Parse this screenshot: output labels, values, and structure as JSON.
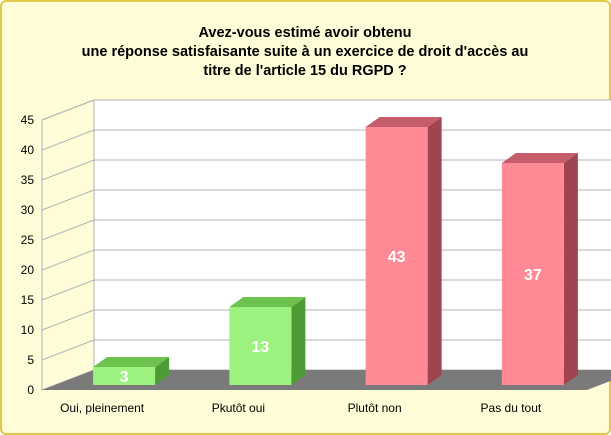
{
  "chart_data": {
    "type": "bar",
    "title_lines": [
      "Avez-vous estimé avoir obtenu",
      "une réponse satisfaisante suite à un exercice de droit d'accès au",
      "titre de l'article 15 du RGPD ?"
    ],
    "categories": [
      "Oui, pleinement",
      "Pkutôt oui",
      "Plutôt non",
      "Pas du tout"
    ],
    "values": [
      3,
      13,
      43,
      37
    ],
    "data_labels": [
      "3",
      "13",
      "43",
      "37"
    ],
    "ylim": [
      0,
      45
    ],
    "yticks": [
      "0",
      "5",
      "10",
      "15",
      "20",
      "25",
      "30",
      "35",
      "40",
      "45"
    ],
    "ytick_values": [
      0,
      5,
      10,
      15,
      20,
      25,
      30,
      35,
      40,
      45
    ],
    "grid": true,
    "legend": "none",
    "style": "3d-bars",
    "bar_colors": {
      "green_front": "#9df27f",
      "green_side": "#4e9a34",
      "green_top": "#6cc24c",
      "red_front": "#ff8a96",
      "red_side": "#a14451",
      "red_top": "#c55d6a"
    },
    "bar_color_scheme": [
      "green",
      "green",
      "red",
      "red"
    ],
    "colors": {
      "background": "#fffdd8",
      "border": "#e3c94a",
      "grid": "#b3b3b3",
      "floor": "#7a7a7a"
    }
  }
}
